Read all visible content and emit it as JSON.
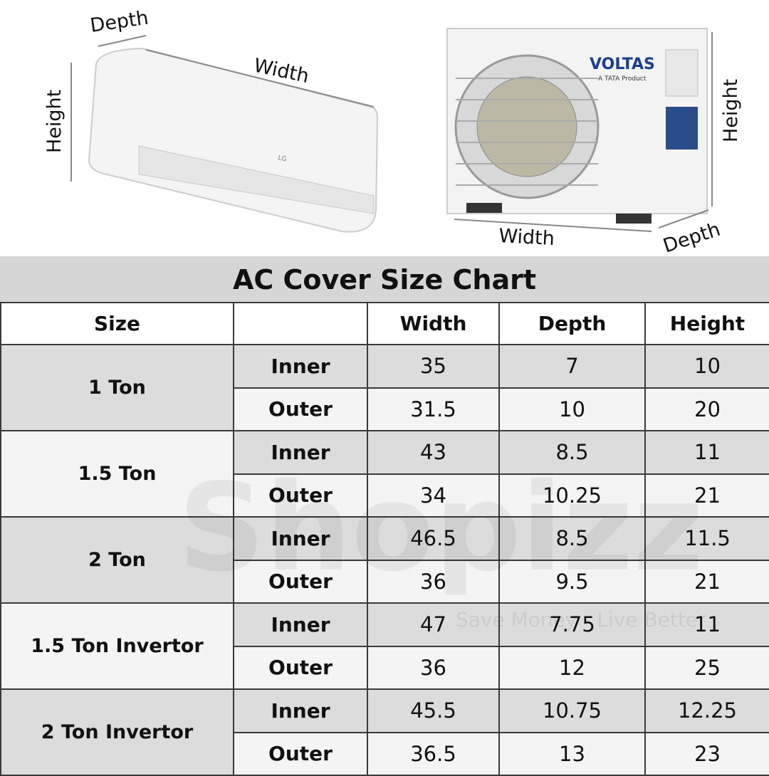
{
  "indoor_unit": {
    "brand": "LG",
    "labels": {
      "depth": "Depth",
      "width": "Width",
      "height": "Height"
    }
  },
  "outdoor_unit": {
    "brand": "VOLTAS",
    "tagline": "A TATA Product",
    "labels": {
      "height": "Height",
      "width": "Width",
      "depth": "Depth"
    }
  },
  "watermark": {
    "name": "Shopizz",
    "slogan": "Save Money - Live Better"
  },
  "table": {
    "title": "AC Cover Size Chart",
    "headers": [
      "Size",
      "Width",
      "Depth",
      "Height"
    ],
    "groups": [
      {
        "size": "1 Ton",
        "rows": [
          {
            "type": "Inner",
            "cells": [
              "35",
              "7",
              "10"
            ]
          },
          {
            "type": "Outer",
            "cells": [
              "31.5",
              "10",
              "20"
            ]
          }
        ]
      },
      {
        "size": "1.5 Ton",
        "rows": [
          {
            "type": "Inner",
            "cells": [
              "43",
              "8.5",
              "11"
            ]
          },
          {
            "type": "Outer",
            "cells": [
              "34",
              "10.25",
              "21"
            ]
          }
        ]
      },
      {
        "size": "2 Ton",
        "rows": [
          {
            "type": "Inner",
            "cells": [
              "46.5",
              "8.5",
              "11.5"
            ]
          },
          {
            "type": "Outer",
            "cells": [
              "36",
              "9.5",
              "21"
            ]
          }
        ]
      },
      {
        "size": "1.5 Ton Invertor",
        "rows": [
          {
            "type": "Inner",
            "cells": [
              "47",
              "7.75",
              "11"
            ]
          },
          {
            "type": "Outer",
            "cells": [
              "36",
              "12",
              "25"
            ]
          }
        ]
      },
      {
        "size": "2 Ton Invertor",
        "rows": [
          {
            "type": "Inner",
            "cells": [
              "45.5",
              "10.75",
              "12.25"
            ]
          },
          {
            "type": "Outer",
            "cells": [
              "36.5",
              "13",
              "23"
            ]
          }
        ]
      }
    ]
  }
}
